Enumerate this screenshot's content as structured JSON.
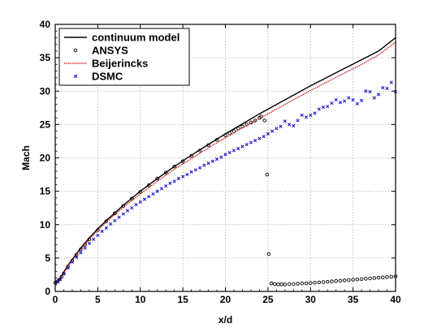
{
  "chart_data": {
    "type": "line",
    "xlabel": "x/d",
    "ylabel": "Mach",
    "xlim": [
      0,
      40
    ],
    "ylim": [
      0,
      40
    ],
    "x_ticks": [
      0,
      5,
      10,
      15,
      20,
      25,
      30,
      35,
      40
    ],
    "y_ticks": [
      0,
      5,
      10,
      15,
      20,
      25,
      30,
      35,
      40
    ],
    "grid": true,
    "legend_position": "top-left",
    "series": [
      {
        "name": "continuum model",
        "style": "line",
        "color": "#000000",
        "x": [
          0,
          0.3,
          0.6,
          1,
          1.5,
          2,
          3,
          4,
          5,
          6,
          8,
          10,
          12,
          14,
          16,
          18,
          20,
          22,
          24,
          26,
          28,
          30,
          32,
          34,
          36,
          38,
          40
        ],
        "y": [
          1.2,
          1.5,
          2.0,
          2.9,
          3.9,
          4.8,
          6.5,
          8.0,
          9.4,
          10.6,
          12.9,
          15.0,
          16.9,
          18.7,
          20.4,
          22.0,
          23.6,
          25.1,
          26.6,
          28.0,
          29.4,
          30.8,
          32.1,
          33.4,
          34.7,
          36.0,
          38.0
        ]
      },
      {
        "name": "ANSYS",
        "style": "circle",
        "color": "#000000",
        "x": [
          0,
          0.25,
          0.5,
          0.75,
          1,
          1.5,
          2,
          2.5,
          3,
          3.5,
          4,
          5,
          6,
          7,
          8,
          9,
          10,
          11,
          12,
          13,
          14,
          15,
          16,
          17,
          18,
          19,
          20,
          20.5,
          21,
          21.5,
          22,
          22.5,
          23,
          23.5,
          24,
          24.2,
          24.6,
          24.9,
          25.1,
          25.4,
          25.8,
          26.2,
          26.6,
          27.0,
          27.5,
          28,
          28.5,
          29,
          29.5,
          30,
          30.5,
          31,
          31.5,
          32,
          32.5,
          33,
          33.5,
          34,
          34.5,
          35,
          35.5,
          36,
          36.5,
          37,
          37.5,
          38,
          38.5,
          39,
          39.5,
          40
        ],
        "y": [
          1.3,
          1.5,
          1.8,
          2.2,
          2.7,
          3.7,
          4.6,
          5.5,
          6.3,
          7.0,
          7.8,
          9.2,
          10.5,
          11.7,
          12.8,
          13.9,
          14.9,
          15.9,
          16.9,
          17.8,
          18.7,
          19.5,
          20.3,
          21.1,
          21.9,
          22.7,
          23.4,
          23.7,
          24.0,
          24.4,
          24.7,
          25.0,
          25.3,
          25.6,
          26.0,
          26.2,
          25.6,
          17.5,
          5.6,
          1.2,
          1.1,
          1.05,
          1.05,
          1.05,
          1.1,
          1.1,
          1.15,
          1.2,
          1.2,
          1.25,
          1.3,
          1.35,
          1.4,
          1.45,
          1.5,
          1.55,
          1.6,
          1.65,
          1.7,
          1.75,
          1.8,
          1.85,
          1.9,
          1.95,
          2.0,
          2.05,
          2.1,
          2.15,
          2.2,
          2.25
        ]
      },
      {
        "name": "Beijerincks",
        "style": "dotted-line",
        "color": "#cc0000",
        "x": [
          0,
          0.3,
          0.6,
          1,
          1.5,
          2,
          3,
          4,
          5,
          6,
          8,
          10,
          12,
          14,
          16,
          18,
          20,
          22,
          24,
          26,
          28,
          30,
          32,
          34,
          36,
          38,
          40
        ],
        "y": [
          1.2,
          1.5,
          2.0,
          2.8,
          3.8,
          4.7,
          6.3,
          7.8,
          9.1,
          10.4,
          12.6,
          14.6,
          16.5,
          18.3,
          19.9,
          21.5,
          23.0,
          24.5,
          25.9,
          27.3,
          28.7,
          30.1,
          31.4,
          32.7,
          34.0,
          35.4,
          37.3
        ]
      },
      {
        "name": "DSMC",
        "style": "x",
        "color": "#1a1acc",
        "x": [
          0.3,
          0.6,
          1,
          1.5,
          2,
          2.5,
          3,
          3.5,
          4,
          4.5,
          5,
          5.5,
          6,
          6.5,
          7,
          7.5,
          8,
          8.5,
          9,
          9.5,
          10,
          10.5,
          11,
          11.5,
          12,
          12.5,
          13,
          13.5,
          14,
          14.5,
          15,
          15.5,
          16,
          16.5,
          17,
          17.5,
          18,
          18.5,
          19,
          19.5,
          20,
          20.5,
          21,
          21.5,
          22,
          22.5,
          23,
          23.5,
          24,
          24.5,
          25,
          25.5,
          26,
          26.5,
          27,
          27.5,
          28,
          28.5,
          29,
          29.5,
          30,
          30.5,
          31,
          31.5,
          32,
          32.5,
          33,
          33.5,
          34,
          34.5,
          35,
          35.5,
          36,
          36.5,
          37,
          37.5,
          38,
          38.5,
          39,
          39.5,
          40
        ],
        "y": [
          1.4,
          1.8,
          2.6,
          3.5,
          4.4,
          5.1,
          5.8,
          6.5,
          7.2,
          7.8,
          8.4,
          9.0,
          9.5,
          10.1,
          10.6,
          11.1,
          11.6,
          12.1,
          12.5,
          13.0,
          13.4,
          13.8,
          14.2,
          14.6,
          15.0,
          15.4,
          15.8,
          16.2,
          16.5,
          16.9,
          17.2,
          17.5,
          17.9,
          18.2,
          18.5,
          18.9,
          19.2,
          19.5,
          19.8,
          20.1,
          20.5,
          20.8,
          21.1,
          21.4,
          21.7,
          22.0,
          22.3,
          22.6,
          22.9,
          23.2,
          23.6,
          24.0,
          24.4,
          24.7,
          25.5,
          25.0,
          24.8,
          25.6,
          26.4,
          26.1,
          26.4,
          26.7,
          27.3,
          27.6,
          27.7,
          28.2,
          28.7,
          28.3,
          28.5,
          29.0,
          28.7,
          28.1,
          28.6,
          30.0,
          29.9,
          29.0,
          29.5,
          30.5,
          30.4,
          31.3,
          29.9
        ]
      }
    ]
  }
}
